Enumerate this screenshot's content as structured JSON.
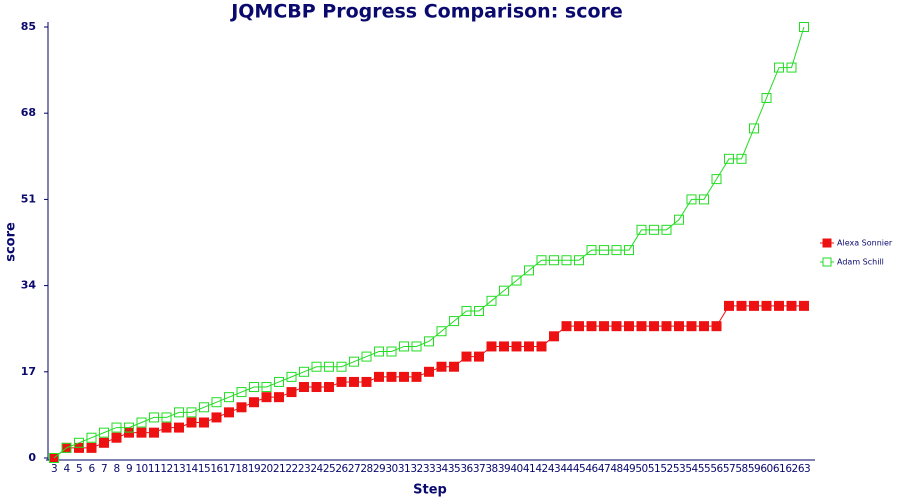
{
  "chart_data": {
    "type": "line",
    "title": "JQMCBP Progress Comparison: score",
    "x_label": "Step",
    "y_label": "score",
    "categories": [
      "3",
      "4",
      "5",
      "6",
      "7",
      "8",
      "9",
      "10",
      "11",
      "12",
      "13",
      "14",
      "15",
      "16",
      "17",
      "18",
      "19",
      "20",
      "21",
      "22",
      "23",
      "24",
      "25",
      "26",
      "27",
      "28",
      "29",
      "30",
      "31",
      "32",
      "33",
      "34",
      "35",
      "36",
      "37",
      "38",
      "39",
      "40",
      "41",
      "42",
      "43",
      "44",
      "45",
      "46",
      "47",
      "48",
      "49",
      "50",
      "51",
      "52",
      "53",
      "54",
      "55",
      "56",
      "57",
      "58",
      "59",
      "60",
      "61",
      "62",
      "63"
    ],
    "series": [
      {
        "name": "Alexa Sonnier",
        "color": "#ee1111",
        "marker": "filled-square",
        "values": [
          0,
          2,
          2,
          2,
          3,
          4,
          5,
          5,
          5,
          6,
          6,
          7,
          7,
          8,
          9,
          10,
          11,
          12,
          12,
          13,
          14,
          14,
          14,
          15,
          15,
          15,
          16,
          16,
          16,
          16,
          17,
          18,
          18,
          20,
          20,
          22,
          22,
          22,
          22,
          22,
          24,
          26,
          26,
          26,
          26,
          26,
          26,
          26,
          26,
          26,
          26,
          26,
          26,
          26,
          30,
          30,
          30,
          30,
          30,
          30,
          30
        ]
      },
      {
        "name": "Adam Schill",
        "color": "#22dd22",
        "marker": "hollow-square",
        "values": [
          0,
          2,
          3,
          4,
          5,
          6,
          6,
          7,
          8,
          8,
          9,
          9,
          10,
          11,
          12,
          13,
          14,
          14,
          15,
          16,
          17,
          18,
          18,
          18,
          19,
          20,
          21,
          21,
          22,
          22,
          23,
          25,
          27,
          29,
          29,
          31,
          33,
          35,
          37,
          39,
          39,
          39,
          39,
          41,
          41,
          41,
          41,
          45,
          45,
          45,
          47,
          51,
          51,
          55,
          59,
          59,
          65,
          71,
          77,
          77,
          85
        ]
      }
    ],
    "ylim": [
      0,
      85
    ],
    "yticks": [
      0,
      17,
      34,
      51,
      68,
      85
    ],
    "legend": "right"
  }
}
